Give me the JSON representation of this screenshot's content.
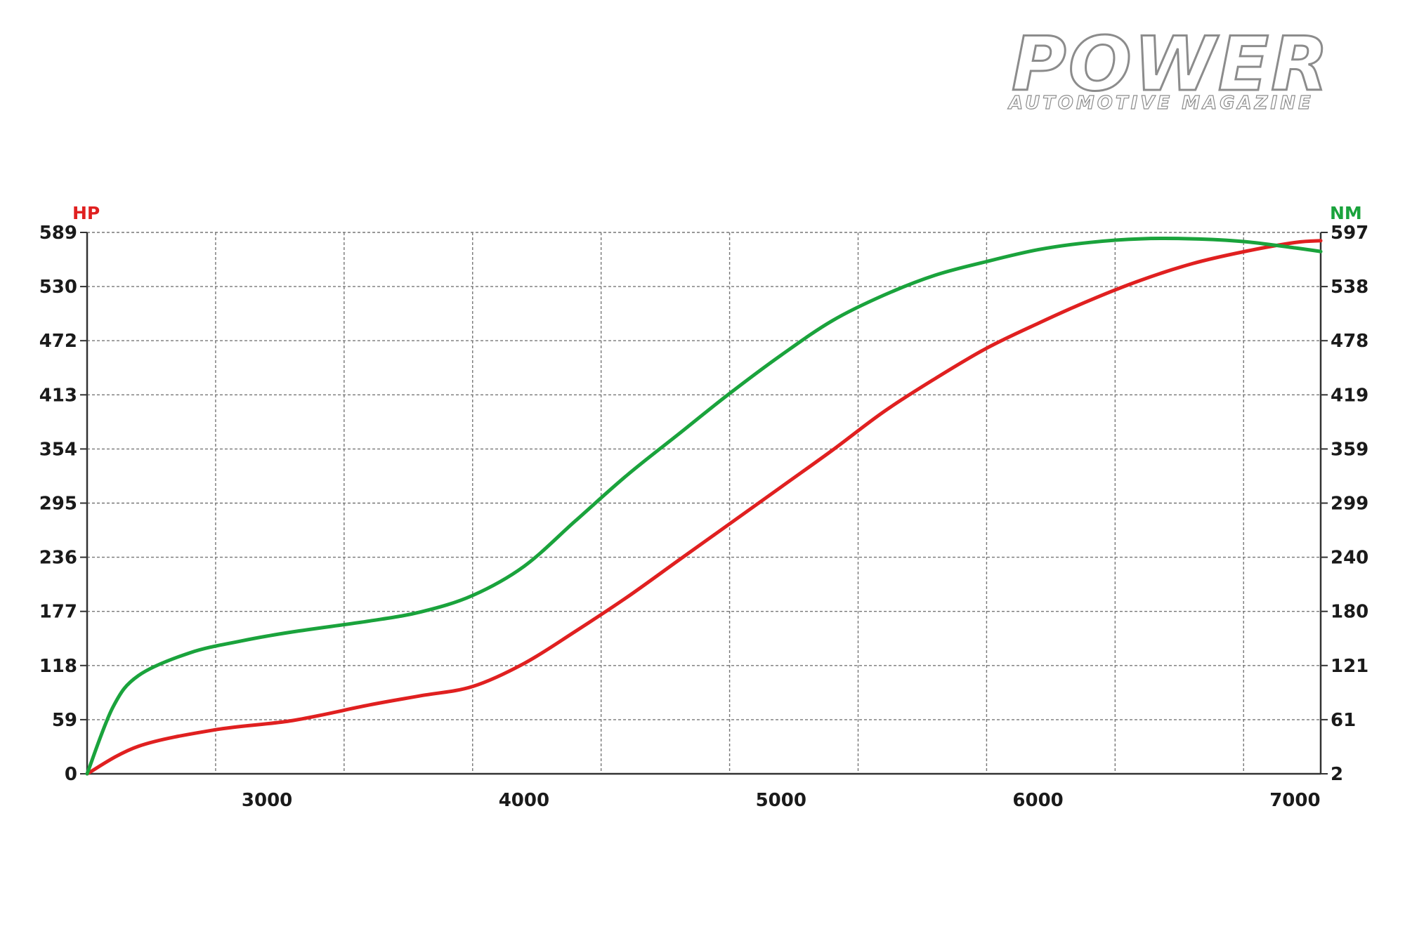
{
  "logo": {
    "title": "POWER",
    "subtitle": "AUTOMOTIVE MAGAZINE"
  },
  "chart_data": {
    "type": "line",
    "title": "",
    "xlabel": "",
    "y_left_label": "HP",
    "y_right_label": "NM",
    "x_ticks": [
      "3000",
      "4000",
      "5000",
      "6000",
      "7000"
    ],
    "x_tick_values": [
      3000,
      4000,
      5000,
      6000,
      7000
    ],
    "xlim": [
      2300,
      7100
    ],
    "y_left_ticks": [
      "0",
      "59",
      "118",
      "177",
      "236",
      "295",
      "354",
      "413",
      "472",
      "530",
      "589"
    ],
    "y_right_ticks": [
      "2",
      "61",
      "121",
      "180",
      "240",
      "299",
      "359",
      "419",
      "478",
      "538",
      "597"
    ],
    "ylim_left": [
      0,
      589
    ],
    "ylim_right": [
      2,
      597
    ],
    "grid": true,
    "grid_style": "dashed",
    "colors": {
      "hp": "#e02020",
      "nm": "#1aa33c",
      "axis": "#333333",
      "grid": "#777777"
    },
    "series": [
      {
        "key": "hp",
        "axis": "left",
        "x": [
          2300,
          2500,
          2800,
          3100,
          3400,
          3600,
          3800,
          4000,
          4200,
          4400,
          4600,
          4800,
          5000,
          5200,
          5400,
          5600,
          5800,
          6000,
          6200,
          6400,
          6600,
          6800,
          7000,
          7100
        ],
        "values": [
          0,
          30,
          48,
          58,
          75,
          85,
          95,
          120,
          155,
          192,
          232,
          272,
          312,
          352,
          394,
          430,
          463,
          490,
          515,
          537,
          555,
          568,
          578,
          580
        ]
      },
      {
        "key": "nm",
        "axis": "right",
        "x": [
          2300,
          2400,
          2500,
          2700,
          2900,
          3100,
          3400,
          3600,
          3800,
          4000,
          4200,
          4400,
          4600,
          4800,
          5000,
          5200,
          5400,
          5600,
          5800,
          6000,
          6200,
          6400,
          6600,
          6800,
          7000,
          7100
        ],
        "values": [
          2,
          75,
          110,
          135,
          148,
          158,
          170,
          180,
          198,
          230,
          280,
          330,
          375,
          420,
          462,
          500,
          528,
          550,
          565,
          578,
          586,
          590,
          590,
          587,
          580,
          576
        ]
      }
    ]
  }
}
